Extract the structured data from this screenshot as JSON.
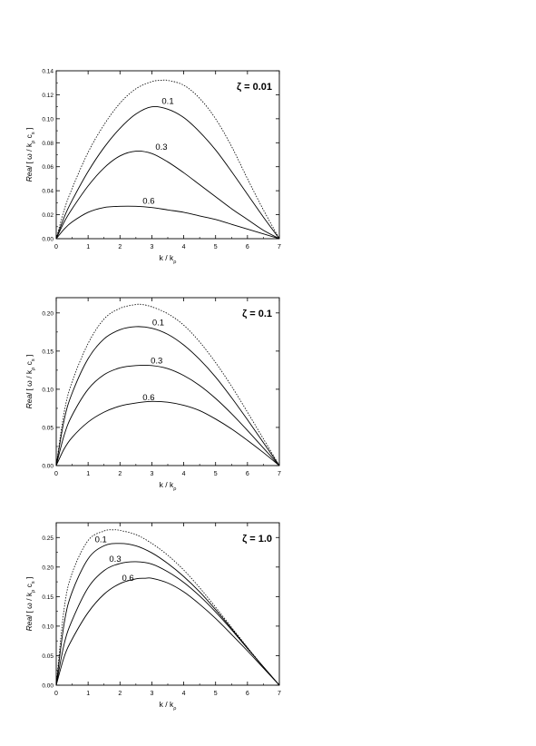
{
  "chart_data": [
    {
      "type": "line",
      "panel_label": "ζ = 0.01",
      "xlabel_main": "k / k",
      "xlabel_sub": "ρ",
      "ylabel_italic": "Real",
      "ylabel_rest": "[ ω / k",
      "ylabel_sub1": "ρ",
      "ylabel_mid": " c",
      "ylabel_sub2": "s",
      "ylabel_end": " ]",
      "xlim": [
        0,
        7
      ],
      "ylim": [
        0,
        0.14
      ],
      "xticks": [
        0,
        1,
        2,
        3,
        4,
        5,
        6,
        7
      ],
      "xtick_labels": [
        "0",
        "1",
        "2",
        "3",
        "4",
        "5",
        "6",
        "7"
      ],
      "yticks": [
        0,
        0.02,
        0.04,
        0.06,
        0.08,
        0.1,
        0.12,
        0.14
      ],
      "ytick_labels": [
        "0.00",
        "0.02",
        "0.04",
        "0.06",
        "0.08",
        "0.10",
        "0.12",
        "0.14"
      ],
      "series": [
        {
          "name": "",
          "style": "dotted",
          "x": [
            0,
            0.25,
            0.5,
            1,
            1.5,
            2,
            2.5,
            3,
            3.3,
            3.5,
            4,
            4.5,
            5,
            5.5,
            6,
            6.5,
            7
          ],
          "y": [
            0,
            0.024,
            0.042,
            0.072,
            0.095,
            0.113,
            0.125,
            0.131,
            0.132,
            0.132,
            0.128,
            0.117,
            0.1,
            0.077,
            0.05,
            0.024,
            0
          ]
        },
        {
          "name": "0.1",
          "style": "solid",
          "x": [
            0,
            0.25,
            0.5,
            1,
            1.5,
            2,
            2.5,
            3,
            3.5,
            4,
            4.5,
            5,
            5.5,
            6,
            6.5,
            7
          ],
          "y": [
            0,
            0.018,
            0.032,
            0.056,
            0.076,
            0.092,
            0.104,
            0.11,
            0.108,
            0.101,
            0.089,
            0.074,
            0.056,
            0.037,
            0.018,
            0
          ]
        },
        {
          "name": "0.3",
          "style": "solid",
          "x": [
            0,
            0.25,
            0.5,
            1,
            1.5,
            2,
            2.5,
            3,
            3.5,
            4,
            4.5,
            5,
            5.5,
            6,
            6.5,
            7
          ],
          "y": [
            0,
            0.014,
            0.025,
            0.044,
            0.059,
            0.069,
            0.073,
            0.071,
            0.064,
            0.055,
            0.045,
            0.035,
            0.025,
            0.016,
            0.007,
            0
          ]
        },
        {
          "name": "0.6",
          "style": "solid",
          "x": [
            0,
            0.25,
            0.5,
            1,
            1.5,
            2,
            2.5,
            3,
            3.5,
            4,
            4.5,
            5,
            5.5,
            6,
            6.5,
            7
          ],
          "y": [
            0,
            0.008,
            0.014,
            0.022,
            0.026,
            0.027,
            0.027,
            0.026,
            0.024,
            0.022,
            0.019,
            0.016,
            0.012,
            0.008,
            0.004,
            0
          ]
        }
      ],
      "labels": [
        {
          "text": "0.1",
          "x": 3.5,
          "y": 0.11
        },
        {
          "text": "0.3",
          "x": 3.3,
          "y": 0.072
        },
        {
          "text": "0.6",
          "x": 2.9,
          "y": 0.027
        }
      ]
    },
    {
      "type": "line",
      "panel_label": "ζ = 0.1",
      "xlabel_main": "k / k",
      "xlabel_sub": "ρ",
      "ylabel_italic": "Real",
      "ylabel_rest": "[ ω / k",
      "ylabel_sub1": "ρ",
      "ylabel_mid": " c",
      "ylabel_sub2": "s",
      "ylabel_end": " ]",
      "xlim": [
        0,
        7
      ],
      "ylim": [
        0,
        0.22
      ],
      "xticks": [
        0,
        1,
        2,
        3,
        4,
        5,
        6,
        7
      ],
      "xtick_labels": [
        "0",
        "1",
        "2",
        "3",
        "4",
        "5",
        "6",
        "7"
      ],
      "yticks": [
        0,
        0.05,
        0.1,
        0.15,
        0.2
      ],
      "ytick_labels": [
        "0.00",
        "0.05",
        "0.10",
        "0.15",
        "0.20"
      ],
      "series": [
        {
          "name": "",
          "style": "dotted",
          "x": [
            0,
            0.25,
            0.5,
            1,
            1.5,
            2,
            2.5,
            2.7,
            3,
            3.5,
            4,
            4.5,
            5,
            5.5,
            6,
            6.5,
            7
          ],
          "y": [
            0,
            0.07,
            0.11,
            0.16,
            0.192,
            0.206,
            0.211,
            0.211,
            0.208,
            0.199,
            0.184,
            0.162,
            0.135,
            0.104,
            0.07,
            0.035,
            0
          ]
        },
        {
          "name": "0.1",
          "style": "solid",
          "x": [
            0,
            0.25,
            0.5,
            1,
            1.5,
            2,
            2.5,
            3,
            3.5,
            4,
            4.5,
            5,
            5.5,
            6,
            6.5,
            7
          ],
          "y": [
            0,
            0.06,
            0.095,
            0.14,
            0.166,
            0.178,
            0.182,
            0.18,
            0.172,
            0.158,
            0.139,
            0.116,
            0.089,
            0.06,
            0.03,
            0
          ]
        },
        {
          "name": "0.3",
          "style": "solid",
          "x": [
            0,
            0.25,
            0.5,
            1,
            1.5,
            2,
            2.5,
            3,
            3.5,
            4,
            4.5,
            5,
            5.5,
            6,
            6.5,
            7
          ],
          "y": [
            0,
            0.04,
            0.066,
            0.1,
            0.119,
            0.128,
            0.131,
            0.131,
            0.127,
            0.118,
            0.105,
            0.088,
            0.068,
            0.046,
            0.023,
            0
          ]
        },
        {
          "name": "0.6",
          "style": "solid",
          "x": [
            0,
            0.25,
            0.5,
            1,
            1.5,
            2,
            2.5,
            3,
            3.5,
            4,
            4.5,
            5,
            5.5,
            6,
            6.5,
            7
          ],
          "y": [
            0,
            0.022,
            0.037,
            0.057,
            0.07,
            0.078,
            0.082,
            0.084,
            0.083,
            0.079,
            0.072,
            0.061,
            0.048,
            0.033,
            0.017,
            0
          ]
        }
      ],
      "labels": [
        {
          "text": "0.1",
          "x": 3.2,
          "y": 0.18
        },
        {
          "text": "0.3",
          "x": 3.15,
          "y": 0.13
        },
        {
          "text": "0.6",
          "x": 2.9,
          "y": 0.082
        }
      ]
    },
    {
      "type": "line",
      "panel_label": "ζ = 1.0",
      "xlabel_main": "k / k",
      "xlabel_sub": "ρ",
      "ylabel_italic": "Real",
      "ylabel_rest": "[ ω / k",
      "ylabel_sub1": "ρ",
      "ylabel_mid": " c",
      "ylabel_sub2": "s",
      "ylabel_end": " ]",
      "xlim": [
        0,
        7
      ],
      "ylim": [
        0,
        0.275
      ],
      "xticks": [
        0,
        1,
        2,
        3,
        4,
        5,
        6,
        7
      ],
      "xtick_labels": [
        "0",
        "1",
        "2",
        "3",
        "4",
        "5",
        "6",
        "7"
      ],
      "yticks": [
        0,
        0.05,
        0.1,
        0.15,
        0.2,
        0.25
      ],
      "ytick_labels": [
        "0.00",
        "0.05",
        "0.10",
        "0.15",
        "0.20",
        "0.25"
      ],
      "series": [
        {
          "name": "",
          "style": "dotted",
          "x": [
            0,
            0.25,
            0.5,
            1,
            1.5,
            1.8,
            2,
            2.5,
            3,
            3.5,
            4,
            4.5,
            5,
            5.5,
            6,
            6.5,
            7
          ],
          "y": [
            0,
            0.13,
            0.19,
            0.245,
            0.261,
            0.263,
            0.262,
            0.255,
            0.24,
            0.22,
            0.195,
            0.165,
            0.132,
            0.098,
            0.064,
            0.031,
            0
          ]
        },
        {
          "name": "0.1",
          "style": "solid",
          "x": [
            0,
            0.25,
            0.5,
            1,
            1.5,
            2,
            2.5,
            3,
            3.5,
            4,
            4.5,
            5,
            5.5,
            6,
            6.5,
            7
          ],
          "y": [
            0,
            0.105,
            0.158,
            0.214,
            0.236,
            0.24,
            0.236,
            0.224,
            0.206,
            0.184,
            0.158,
            0.128,
            0.096,
            0.063,
            0.031,
            0
          ]
        },
        {
          "name": "0.3",
          "style": "solid",
          "x": [
            0,
            0.25,
            0.5,
            1,
            1.5,
            2,
            2.5,
            3,
            3.5,
            4,
            4.5,
            5,
            5.5,
            6,
            6.5,
            7
          ],
          "y": [
            0,
            0.07,
            0.11,
            0.165,
            0.194,
            0.206,
            0.209,
            0.205,
            0.192,
            0.174,
            0.151,
            0.124,
            0.094,
            0.062,
            0.031,
            0
          ]
        },
        {
          "name": "0.6",
          "style": "solid",
          "x": [
            0,
            0.25,
            0.5,
            1,
            1.5,
            2,
            2.5,
            2.8,
            3,
            3.5,
            4,
            4.5,
            5,
            5.5,
            6,
            6.5,
            7
          ],
          "y": [
            0,
            0.048,
            0.078,
            0.123,
            0.154,
            0.172,
            0.18,
            0.181,
            0.181,
            0.173,
            0.158,
            0.137,
            0.113,
            0.086,
            0.058,
            0.029,
            0
          ]
        }
      ],
      "labels": [
        {
          "text": "0.1",
          "x": 1.4,
          "y": 0.237
        },
        {
          "text": "0.3",
          "x": 1.85,
          "y": 0.204
        },
        {
          "text": "0.6",
          "x": 2.25,
          "y": 0.172
        }
      ]
    }
  ]
}
